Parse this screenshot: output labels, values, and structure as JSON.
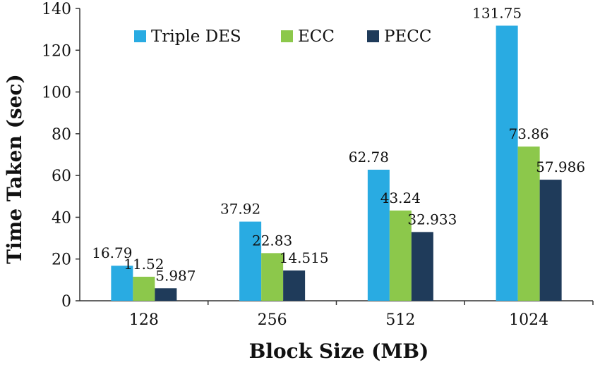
{
  "chart_data": {
    "type": "bar",
    "categories": [
      "128",
      "256",
      "512",
      "1024"
    ],
    "series": [
      {
        "name": "Triple DES",
        "values": [
          16.79,
          37.92,
          62.78,
          131.75
        ],
        "labels": [
          "16.79",
          "37.92",
          "62.78",
          "131.75"
        ],
        "color": "#29abe2"
      },
      {
        "name": "ECC",
        "values": [
          11.52,
          22.83,
          43.24,
          73.86
        ],
        "labels": [
          "11.52",
          "22.83",
          "43.24",
          "73.86"
        ],
        "color": "#8cc84b"
      },
      {
        "name": "PECC",
        "values": [
          5.987,
          14.515,
          32.933,
          57.986
        ],
        "labels": [
          "5.987",
          "14.515",
          "32.933",
          "57.986"
        ],
        "color": "#1f3b5a"
      }
    ],
    "xlabel": "Block Size (MB)",
    "ylabel": "Time Taken (sec)",
    "ylim": [
      0,
      140
    ],
    "yticks": [
      "0",
      "20",
      "40",
      "60",
      "80",
      "100",
      "120",
      "140"
    ],
    "grid": false,
    "legend": "top-center"
  }
}
